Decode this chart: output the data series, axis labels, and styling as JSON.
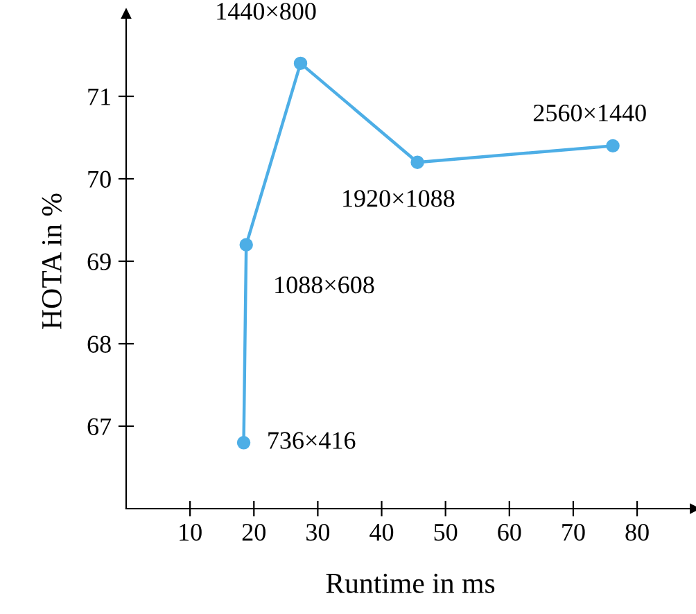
{
  "chart_data": {
    "type": "line",
    "xlabel": "Runtime in ms",
    "ylabel": "HOTA in %",
    "x": [
      18.4,
      18.8,
      27.3,
      45.6,
      76.2
    ],
    "series": [
      {
        "color": "#4daee6",
        "values": [
          66.8,
          69.2,
          71.4,
          70.2,
          70.4
        ]
      }
    ],
    "xlim": [
      0,
      89
    ],
    "ylim": [
      66,
      72
    ],
    "xticks": [
      10,
      20,
      30,
      40,
      50,
      60,
      70,
      80
    ],
    "yticks": [
      67,
      68,
      69,
      70,
      71
    ],
    "marker": "circle",
    "line_style": "solid",
    "grid": false,
    "legend": false,
    "annotations": [
      {
        "text": "736×416",
        "x": 18.4,
        "y": 66.8
      },
      {
        "text": "1088×608",
        "x": 18.8,
        "y": 69.2
      },
      {
        "text": "1440×800",
        "x": 27.3,
        "y": 71.4
      },
      {
        "text": "1920×1088",
        "x": 45.6,
        "y": 70.2
      },
      {
        "text": "2560×1440",
        "x": 76.2,
        "y": 70.4
      }
    ]
  }
}
